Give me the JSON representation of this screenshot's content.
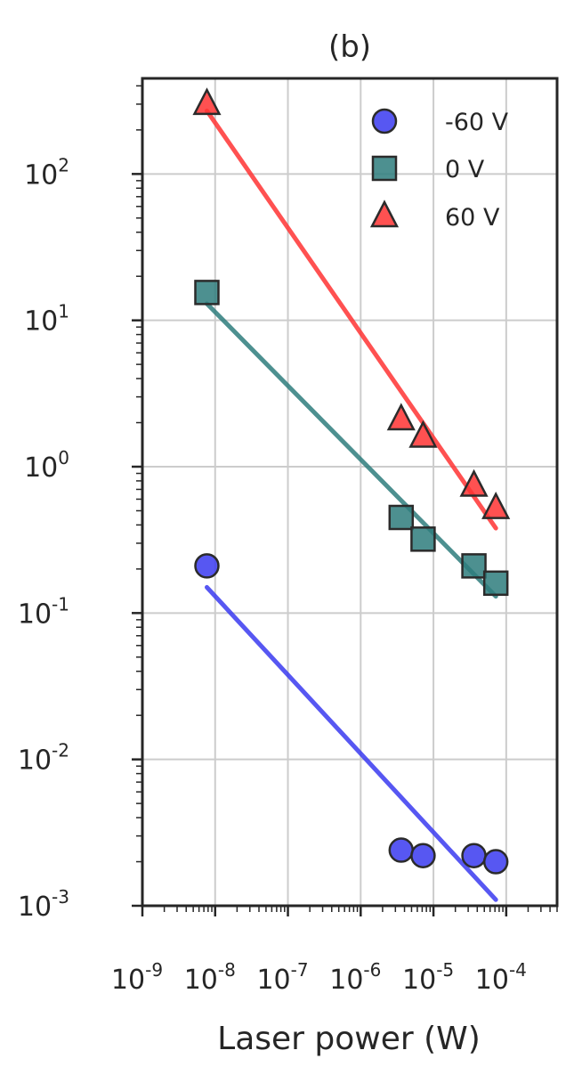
{
  "chart_data": {
    "type": "scatter",
    "title": "(b)",
    "xlabel": "Laser power (W)",
    "ylabel": "",
    "xscale": "log",
    "yscale": "log",
    "xlim": [
      1e-09,
      0.0005
    ],
    "ylim": [
      0.001,
      450
    ],
    "grid": true,
    "legend_position": "top-right",
    "x_ticks": [
      {
        "base": "10",
        "exp": "-9",
        "value": 1e-09
      },
      {
        "base": "10",
        "exp": "-8",
        "value": 1e-08
      },
      {
        "base": "10",
        "exp": "-7",
        "value": 1e-07
      },
      {
        "base": "10",
        "exp": "-6",
        "value": 1e-06
      },
      {
        "base": "10",
        "exp": "-5",
        "value": 1e-05
      },
      {
        "base": "10",
        "exp": "-4",
        "value": 0.0001
      }
    ],
    "y_ticks": [
      {
        "base": "10",
        "exp": "-3",
        "value": 0.001
      },
      {
        "base": "10",
        "exp": "-2",
        "value": 0.01
      },
      {
        "base": "10",
        "exp": "-1",
        "value": 0.1
      },
      {
        "base": "10",
        "exp": "0",
        "value": 1
      },
      {
        "base": "10",
        "exp": "1",
        "value": 10
      },
      {
        "base": "10",
        "exp": "2",
        "value": 100
      }
    ],
    "series": [
      {
        "name": "-60 V",
        "marker": "circle",
        "color": "#3a3af0",
        "points": [
          {
            "x": 7.7e-09,
            "y": 0.21
          },
          {
            "x": 3.6e-06,
            "y": 0.0024
          },
          {
            "x": 7.2e-06,
            "y": 0.0022
          },
          {
            "x": 3.6e-05,
            "y": 0.0022
          },
          {
            "x": 7.2e-05,
            "y": 0.002
          }
        ],
        "fit": {
          "x": [
            7.7e-09,
            7.2e-05
          ],
          "y": [
            0.15,
            0.0011
          ]
        }
      },
      {
        "name": "0 V",
        "marker": "square",
        "color": "#2e7d7d",
        "points": [
          {
            "x": 7.7e-09,
            "y": 15.5
          },
          {
            "x": 3.6e-06,
            "y": 0.45
          },
          {
            "x": 7.2e-06,
            "y": 0.32
          },
          {
            "x": 3.6e-05,
            "y": 0.21
          },
          {
            "x": 7.2e-05,
            "y": 0.16
          }
        ],
        "fit": {
          "x": [
            7.7e-09,
            7.2e-05
          ],
          "y": [
            13.0,
            0.13
          ]
        }
      },
      {
        "name": "60 V",
        "marker": "triangle",
        "color": "#ff3333",
        "points": [
          {
            "x": 7.7e-09,
            "y": 300
          },
          {
            "x": 3.6e-06,
            "y": 2.1
          },
          {
            "x": 7.2e-06,
            "y": 1.6
          },
          {
            "x": 3.6e-05,
            "y": 0.74
          },
          {
            "x": 7.2e-05,
            "y": 0.52
          }
        ],
        "fit": {
          "x": [
            7.7e-09,
            7.2e-05
          ],
          "y": [
            270,
            0.38
          ]
        }
      }
    ]
  }
}
